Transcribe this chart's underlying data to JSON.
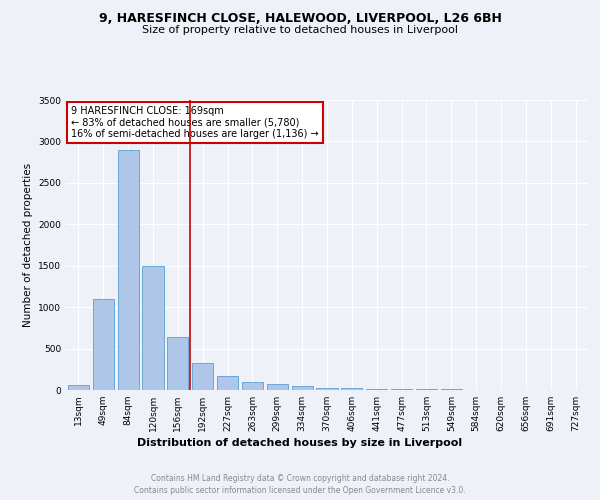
{
  "title_line1": "9, HARESFINCH CLOSE, HALEWOOD, LIVERPOOL, L26 6BH",
  "title_line2": "Size of property relative to detached houses in Liverpool",
  "xlabel": "Distribution of detached houses by size in Liverpool",
  "ylabel": "Number of detached properties",
  "footer_line1": "Contains HM Land Registry data © Crown copyright and database right 2024.",
  "footer_line2": "Contains public sector information licensed under the Open Government Licence v3.0.",
  "categories": [
    "13sqm",
    "49sqm",
    "84sqm",
    "120sqm",
    "156sqm",
    "192sqm",
    "227sqm",
    "263sqm",
    "299sqm",
    "334sqm",
    "370sqm",
    "406sqm",
    "441sqm",
    "477sqm",
    "513sqm",
    "549sqm",
    "584sqm",
    "620sqm",
    "656sqm",
    "691sqm",
    "727sqm"
  ],
  "values": [
    55,
    1100,
    2900,
    1500,
    640,
    330,
    170,
    95,
    70,
    45,
    30,
    20,
    15,
    10,
    10,
    8,
    5,
    4,
    3,
    2,
    2
  ],
  "bar_color": "#aec6e8",
  "bar_edge_color": "#5a9fd4",
  "property_line_x": 4.5,
  "annotation_title": "9 HARESFINCH CLOSE: 169sqm",
  "annotation_line2": "← 83% of detached houses are smaller (5,780)",
  "annotation_line3": "16% of semi-detached houses are larger (1,136) →",
  "annotation_box_color": "#ffffff",
  "annotation_box_edge_color": "#cc0000",
  "vline_color": "#cc0000",
  "ylim": [
    0,
    3500
  ],
  "yticks": [
    0,
    500,
    1000,
    1500,
    2000,
    2500,
    3000,
    3500
  ],
  "background_color": "#eef2f8",
  "grid_color": "#ffffff",
  "title1_fontsize": 9,
  "title2_fontsize": 8,
  "xlabel_fontsize": 8,
  "ylabel_fontsize": 7.5,
  "tick_fontsize": 6.5,
  "annot_fontsize": 7,
  "footer_fontsize": 5.5
}
